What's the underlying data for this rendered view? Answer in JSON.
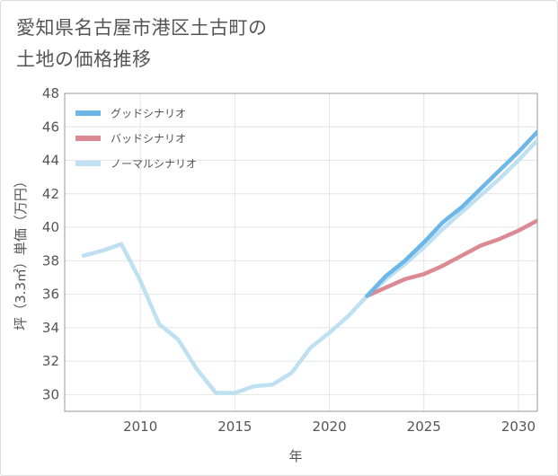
{
  "title": {
    "line1": "愛知県名古屋市港区土古町の",
    "line2": "土地の価格推移"
  },
  "colors": {
    "good": "#6cb7e8",
    "bad": "#db8a94",
    "normal": "#bfe0f0",
    "grid": "#e4e4e4",
    "axis": "#9a9a9a"
  },
  "chart_data": {
    "type": "line",
    "xlabel": "年",
    "ylabel": "坪（3.3㎡）単価（万円）",
    "xlim": [
      2006,
      2031
    ],
    "ylim": [
      29,
      48
    ],
    "x_ticks": [
      2010,
      2015,
      2020,
      2025,
      2030
    ],
    "y_ticks": [
      30,
      32,
      34,
      36,
      38,
      40,
      42,
      44,
      46,
      48
    ],
    "grid": true,
    "legend_position": "top-left",
    "series": [
      {
        "name": "グッドシナリオ",
        "color_key": "good",
        "x": [
          2022,
          2023,
          2024,
          2025,
          2026,
          2027,
          2028,
          2029,
          2030,
          2031
        ],
        "y": [
          35.9,
          37.1,
          38.0,
          39.1,
          40.3,
          41.2,
          42.3,
          43.4,
          44.5,
          45.7
        ]
      },
      {
        "name": "バッドシナリオ",
        "color_key": "bad",
        "x": [
          2022,
          2023,
          2024,
          2025,
          2026,
          2027,
          2028,
          2029,
          2030,
          2031
        ],
        "y": [
          35.9,
          36.4,
          36.9,
          37.2,
          37.7,
          38.3,
          38.9,
          39.3,
          39.8,
          40.4
        ]
      },
      {
        "name": "ノーマルシナリオ",
        "color_key": "normal",
        "x": [
          2007,
          2008,
          2009,
          2010,
          2011,
          2012,
          2013,
          2014,
          2015,
          2016,
          2017,
          2018,
          2019,
          2020,
          2021,
          2022,
          2023,
          2024,
          2025,
          2026,
          2027,
          2028,
          2029,
          2030,
          2031
        ],
        "y": [
          38.3,
          38.6,
          39.0,
          36.8,
          34.2,
          33.3,
          31.5,
          30.1,
          30.1,
          30.5,
          30.6,
          31.3,
          32.8,
          33.7,
          34.7,
          35.9,
          36.9,
          37.8,
          38.8,
          39.9,
          40.9,
          41.9,
          42.9,
          44.0,
          45.2
        ]
      }
    ]
  }
}
